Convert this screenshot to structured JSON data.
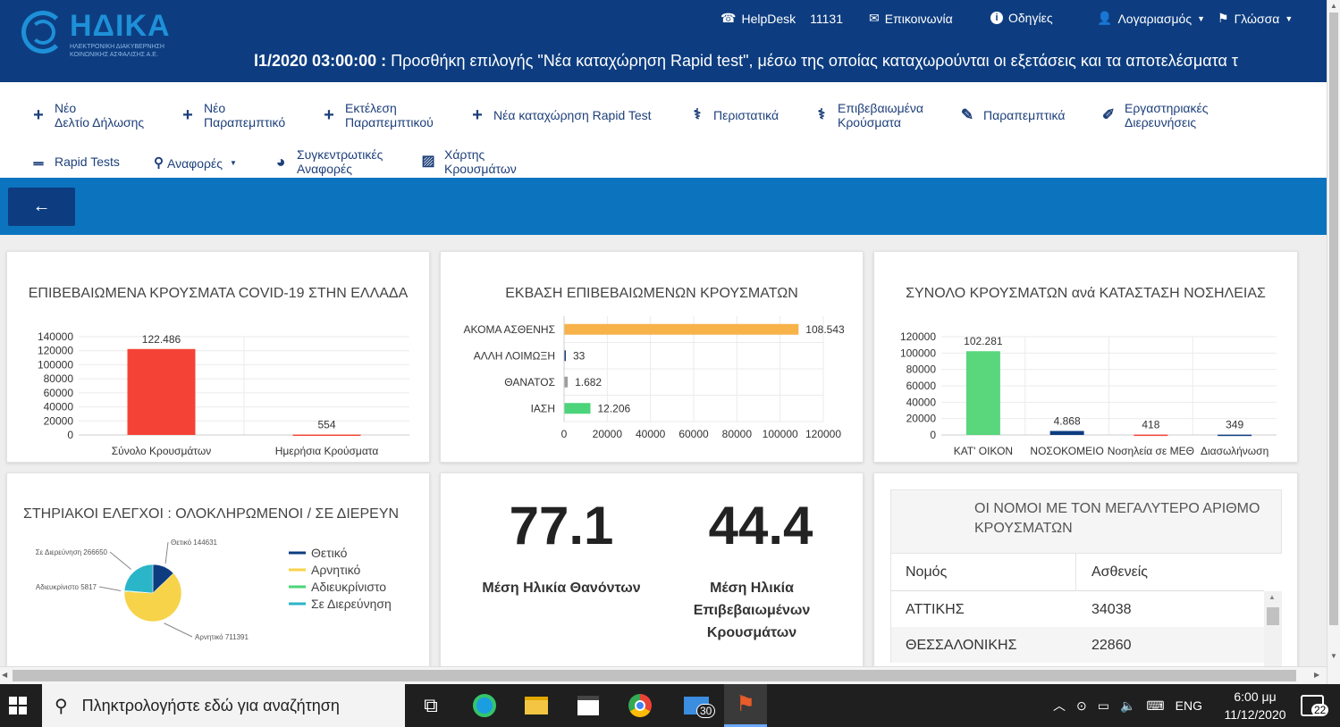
{
  "header": {
    "logo_name": "ΗΔΙΚΑ",
    "logo_subtitle": "ΗΛΕΚΤΡΟΝΙΚΗ ΔΙΑΚΥΒΕΡΝΗΣΗ ΚΟΙΝΩΝΙΚΗΣ ΑΣΦΑΛΙΣΗΣ Α.Ε.",
    "helpdesk_label": "HelpDesk",
    "helpdesk_number": "11131",
    "contact_label": "Επικοινωνία",
    "guides_label": "Οδηγίες",
    "account_label": "Λογαριασμός",
    "language_label": "Γλώσσα",
    "ticker_time": "l1/2020 03:00:00 :",
    "ticker_text": " Προσθήκη επιλογής \"Νέα καταχώρηση Rapid test\", μέσω της οποίας καταχωρούνται οι εξετάσεις και τα αποτελέσματα τ"
  },
  "toolbar": {
    "new_declaration": [
      "Νέο",
      "Δελτίο Δήλωσης"
    ],
    "new_referral": [
      "Νέο",
      "Παραπεμπτικό"
    ],
    "execute_referral": [
      "Εκτέλεση",
      "Παραπεμπτικού"
    ],
    "new_rapid": "Νέα καταχώρηση Rapid Test",
    "cases": "Περιστατικά",
    "confirmed_cases": [
      "Επιβεβαιωμένα",
      "Κρούσματα"
    ],
    "referrals": "Παραπεμπτικά",
    "lab_investigations": [
      "Εργαστηριακές",
      "Διερευνήσεις"
    ],
    "rapid_tests": "Rapid Tests",
    "reports": "Αναφορές",
    "summary_reports": [
      "Συγκεντρωτικές",
      "Αναφορές"
    ],
    "cases_map": [
      "Χάρτης",
      "Κρουσμάτων"
    ]
  },
  "charts": {
    "c1_title": "ΕΠΙΒΕΒΑΙΩΜΕΝΑ ΚΡΟΥΣΜΑΤΑ COVID-19 ΣΤΗΝ ΕΛΛΑΔΑ",
    "c2_title": "ΕΚΒΑΣΗ ΕΠΙΒΕΒΑΙΩΜΕΝΩΝ ΚΡΟΥΣΜΑΤΩΝ",
    "c3_title": "ΣΥΝΟΛΟ ΚΡΟΥΣΜΑΤΩΝ ανά ΚΑΤΑΣΤΑΣΗ ΝΟΣΗΛΕΙΑΣ",
    "c4_title": "ΣΤΗΡΙΑΚΟΙ ΕΛΕΓΧΟΙ  : ΟΛΟΚΛΗΡΩΜΕΝΟΙ / ΣΕ ΔΙΕΡΕΥΝ"
  },
  "chart_data": [
    {
      "type": "bar",
      "title": "ΕΠΙΒΕΒΑΙΩΜΕΝΑ ΚΡΟΥΣΜΑΤΑ COVID-19 ΣΤΗΝ ΕΛΛΑΔΑ",
      "categories": [
        "Σύνολο Κρουσμάτων",
        "Ημερήσια Κρούσματα"
      ],
      "values": [
        122486,
        554
      ],
      "value_labels": [
        "122.486",
        "554"
      ],
      "colors": [
        "#f44336",
        "#f44336"
      ],
      "ylim": [
        0,
        140000
      ],
      "yticks": [
        "0",
        "20000",
        "40000",
        "60000",
        "80000",
        "100000",
        "120000",
        "140000"
      ]
    },
    {
      "type": "bar",
      "orientation": "horizontal",
      "title": "ΕΚΒΑΣΗ ΕΠΙΒΕΒΑΙΩΜΕΝΩΝ ΚΡΟΥΣΜΑΤΩΝ",
      "categories": [
        "ΑΚΟΜΑ ΑΣΘΕΝΗΣ",
        "ΑΛΛΗ ΛΟΙΜΩΞΗ",
        "ΘΑΝΑΤΟΣ",
        "ΙΑΣΗ"
      ],
      "values": [
        108543,
        33,
        1682,
        12206
      ],
      "value_labels": [
        "108.543",
        "33",
        "1.682",
        "12.206"
      ],
      "colors": [
        "#f7b24a",
        "#1d3f7a",
        "#9e9e9e",
        "#4cd47a"
      ],
      "xlim": [
        0,
        120000
      ],
      "xticks": [
        "0",
        "20000",
        "40000",
        "60000",
        "80000",
        "100000",
        "120000"
      ]
    },
    {
      "type": "bar",
      "title": "ΣΥΝΟΛΟ ΚΡΟΥΣΜΑΤΩΝ ανά ΚΑΤΑΣΤΑΣΗ ΝΟΣΗΛΕΙΑΣ",
      "categories": [
        "ΚΑΤ' ΟΙΚΟΝ",
        "ΝΟΣΟΚΟΜΕΙΟ",
        "Νοσηλεία σε ΜΕΘ",
        "Διασωλήνωση"
      ],
      "values": [
        102281,
        4868,
        418,
        349
      ],
      "value_labels": [
        "102.281",
        "4.868",
        "418",
        "349"
      ],
      "colors": [
        "#5ad67d",
        "#0d3d80",
        "#f44336",
        "#0d3d80"
      ],
      "ylim": [
        0,
        120000
      ],
      "yticks": [
        "0",
        "20000",
        "40000",
        "60000",
        "80000",
        "100000",
        "120000"
      ]
    },
    {
      "type": "pie",
      "title": "ΣΤΗΡΙΑΚΟΙ ΕΛΕΓΧΟΙ  : ΟΛΟΚΛΗΡΩΜΕΝΟΙ / ΣΕ ΔΙΕΡΕΥΝ",
      "slices": [
        {
          "name": "Θετικό",
          "value": 144631,
          "label": "Θετικό 144631",
          "color": "#0d3d80"
        },
        {
          "name": "Αρνητικό",
          "value": 711391,
          "label": "Αρνητικό 711391",
          "color": "#f7d34a"
        },
        {
          "name": "Αδιευκρίνιστο",
          "value": 5817,
          "label": "Αδιευκρίνιστο 5817",
          "color": "#4cd47a"
        },
        {
          "name": "Σε Διερεύνηση",
          "value": 266650,
          "label": "Σε Διερεύνηση 266650",
          "color": "#2bb5c8"
        }
      ],
      "legend_position": "right"
    }
  ],
  "stats": {
    "avg_age_deaths": "77.1",
    "avg_age_deaths_label": "Μέση Ηλικία Θανόντων",
    "avg_age_confirmed": "44.4",
    "avg_age_confirmed_label": [
      "Μέση Ηλικία",
      "Επιβεβαιωμένων",
      "Κρουσμάτων"
    ]
  },
  "regions_table": {
    "title": [
      "ΟΙ ΝΟΜΟΙ ΜΕ ΤΟΝ ΜΕΓΑΛΥΤΕΡΟ ΑΡΙΘΜΟ",
      "ΚΡΟΥΣΜΑΤΩΝ"
    ],
    "headers": [
      "Νομός",
      "Ασθενείς"
    ],
    "rows": [
      [
        "ΑΤΤΙΚΗΣ",
        "34038"
      ],
      [
        "ΘΕΣΣΑΛΟΝΙΚΗΣ",
        "22860"
      ]
    ]
  },
  "taskbar": {
    "search_placeholder": "Πληκτρολογήστε εδώ για αναζήτηση",
    "mail_badge": "30",
    "language": "ENG",
    "time": "6:00 μμ",
    "date": "11/12/2020",
    "notifications": "22"
  }
}
